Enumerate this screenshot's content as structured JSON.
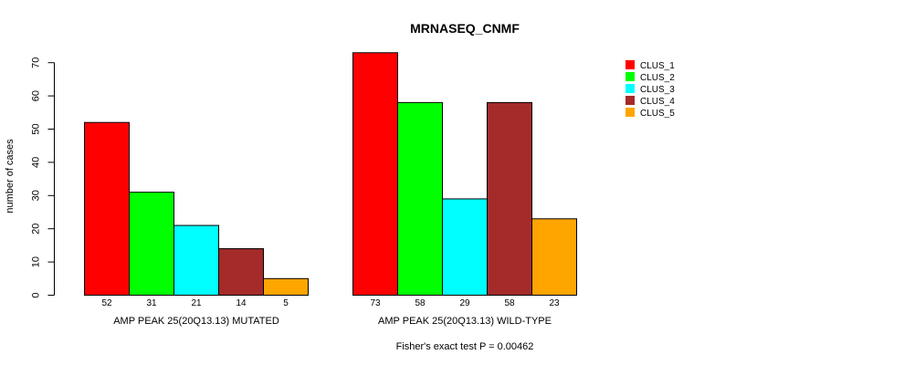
{
  "chart_data": {
    "type": "bar",
    "title": "MRNASEQ_CNMF",
    "ylabel": "number of cases",
    "ylim": [
      0,
      73
    ],
    "yticks": [
      0,
      10,
      20,
      30,
      40,
      50,
      60,
      70
    ],
    "legend_position": "top-right",
    "series": [
      {
        "name": "CLUS_1",
        "color": "#ff0000"
      },
      {
        "name": "CLUS_2",
        "color": "#00ff00"
      },
      {
        "name": "CLUS_3",
        "color": "#00ffff"
      },
      {
        "name": "CLUS_4",
        "color": "#a52a2a"
      },
      {
        "name": "CLUS_5",
        "color": "#ffa500"
      }
    ],
    "groups": [
      {
        "label": "AMP PEAK 25(20Q13.13) MUTATED",
        "values": [
          52,
          31,
          21,
          14,
          5
        ]
      },
      {
        "label": "AMP PEAK 25(20Q13.13) WILD-TYPE",
        "values": [
          73,
          58,
          29,
          58,
          23
        ]
      }
    ],
    "footer": "Fisher's exact test P = 0.00462"
  }
}
